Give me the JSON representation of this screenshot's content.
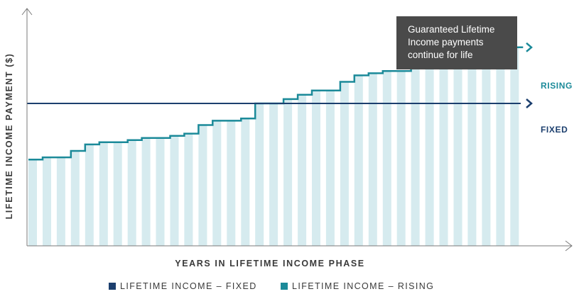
{
  "chart_data": {
    "type": "bar",
    "ylabel": "LIFETIME INCOME PAYMENT ($)",
    "xlabel": "YEARS IN LIFETIME INCOME PHASE",
    "bar_values": [
      40,
      41,
      41,
      44,
      47,
      48,
      48,
      49,
      50,
      50,
      51,
      52,
      56,
      58,
      58,
      59,
      66,
      66,
      68,
      70,
      72,
      72,
      76,
      79,
      80,
      81,
      81,
      83,
      84,
      84,
      86,
      90,
      91,
      91,
      92
    ],
    "fixed_value": 66,
    "ylim": [
      0,
      110
    ],
    "series": [
      {
        "name": "LIFETIME INCOME – FIXED",
        "color": "#1c3f6e"
      },
      {
        "name": "LIFETIME INCOME – RISING",
        "color": "#1b8a99"
      }
    ],
    "bar_color": "#d6ebef",
    "annotations": {
      "rising": "RISING",
      "fixed": "FIXED",
      "callout": "Guaranteed Lifetime Income payments continue for life"
    }
  }
}
